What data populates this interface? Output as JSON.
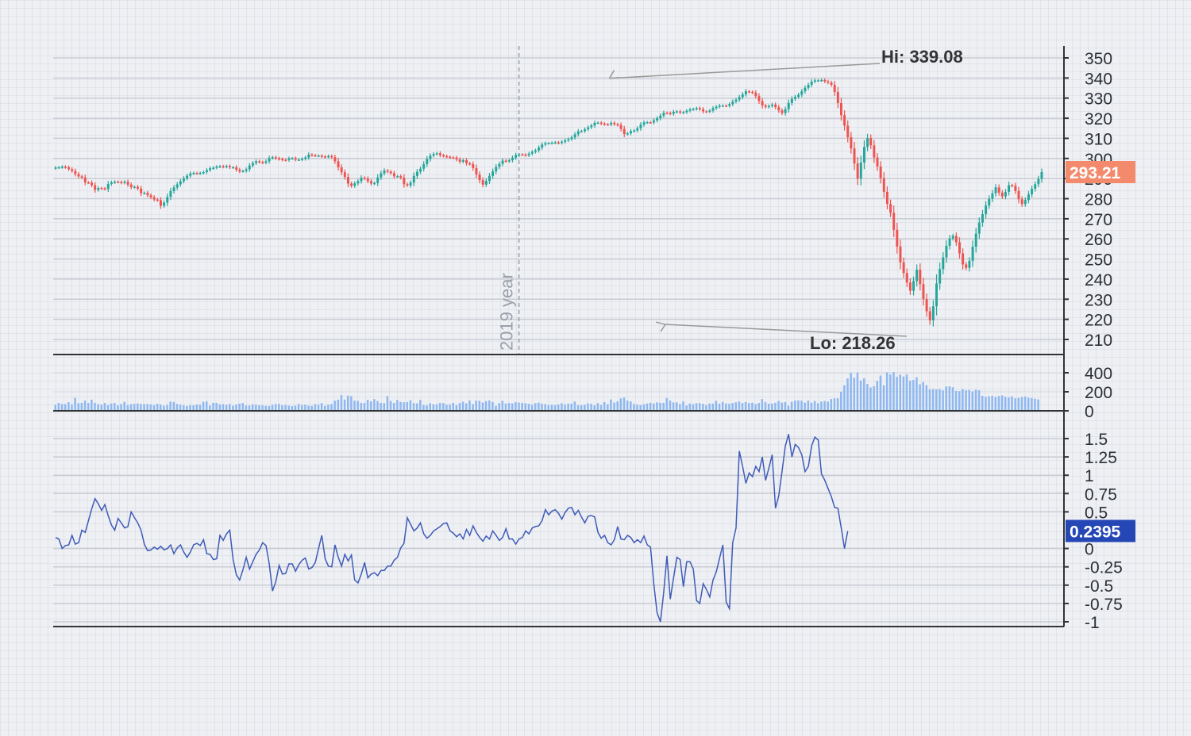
{
  "chart_data": {
    "type": "candlestick",
    "title": "",
    "vertical_marker": {
      "label": "2019 year",
      "index": 140
    },
    "colors": {
      "up": "#26a69a",
      "down": "#ef5350",
      "volume": "#8fb8f0",
      "indicator": "#3f5bb8",
      "last_price_badge": "#f48a6c",
      "indicator_badge": "#2547b5"
    },
    "price_panel": {
      "y_ticks": [
        350,
        340,
        330,
        320,
        310,
        300,
        290,
        280,
        270,
        260,
        250,
        240,
        230,
        220,
        210
      ],
      "y_range": [
        205,
        355
      ],
      "last_price": "293.21",
      "hi_label": "Hi: 339.08",
      "lo_label": "Lo: 218.26",
      "hi_value": 339.08,
      "lo_value": 218.26,
      "hi_index": 168,
      "lo_index": 186,
      "closes": [
        295.5,
        295.6,
        295.9,
        295.6,
        294.7,
        293.8,
        292.2,
        291.1,
        290.5,
        288.1,
        288.0,
        286.7,
        284.4,
        285.3,
        285.1,
        284.8,
        287.3,
        288.1,
        288.4,
        288.3,
        287.9,
        288.4,
        287.0,
        285.7,
        285.9,
        285.0,
        282.7,
        282.9,
        281.7,
        280.7,
        279.6,
        279.2,
        276.5,
        278.0,
        280.9,
        283.8,
        285.5,
        287.1,
        288.7,
        290.1,
        291.4,
        292.5,
        292.8,
        292.6,
        292.8,
        293.2,
        294.2,
        295.1,
        295.4,
        295.9,
        296.1,
        295.8,
        296.2,
        295.6,
        295.6,
        294.4,
        293.6,
        293.8,
        294.6,
        296.5,
        297.7,
        298.6,
        298.2,
        297.9,
        298.6,
        300.2,
        300.6,
        300.1,
        299.7,
        299.3,
        299.2,
        300.0,
        300.1,
        299.4,
        299.4,
        299.8,
        300.5,
        301.9,
        301.6,
        301.4,
        301.4,
        301.0,
        300.8,
        301.2,
        300.6,
        298.6,
        295.6,
        293.1,
        290.8,
        287.5,
        286.4,
        287.6,
        288.7,
        290.4,
        290.0,
        288.7,
        287.5,
        287.8,
        290.6,
        292.6,
        294.0,
        293.4,
        292.7,
        291.1,
        291.2,
        290.4,
        287.2,
        286.6,
        288.0,
        291.3,
        293.4,
        294.9,
        297.2,
        299.7,
        301.4,
        302.2,
        302.6,
        301.6,
        301.2,
        300.8,
        300.5,
        300.4,
        299.5,
        298.4,
        299.1,
        297.6,
        297.2,
        295.2,
        292.0,
        289.2,
        287.0,
        288.8,
        291.3,
        293.6,
        295.8,
        297.3,
        298.9,
        298.6,
        299.1,
        300.4,
        301.7,
        302.0,
        301.9,
        301.6,
        302.4,
        303.3,
        304.0,
        305.4,
        306.9,
        307.6,
        307.6,
        307.8,
        308.0,
        307.7,
        308.3,
        309.0,
        309.6,
        310.5,
        312.0,
        313.5,
        313.6,
        314.5,
        315.5,
        316.4,
        317.7,
        317.8,
        317.3,
        317.0,
        316.9,
        317.7,
        317.0,
        316.6,
        314.7,
        312.1,
        312.5,
        313.6,
        313.9,
        315.0,
        316.8,
        317.9,
        318.0,
        317.9,
        318.9,
        320.0,
        321.3,
        322.7,
        322.6,
        322.2,
        323.2,
        323.4,
        322.8,
        323.0,
        323.7,
        324.4,
        324.6,
        325.0,
        324.5,
        323.4,
        323.3,
        323.8,
        325.0,
        325.7,
        326.3,
        326.3,
        326.2,
        327.0,
        328.3,
        329.2,
        330.5,
        331.9,
        333.4,
        333.1,
        332.7,
        331.0,
        328.6,
        326.3,
        325.6,
        326.1,
        326.8,
        325.5,
        323.9,
        322.6,
        324.5,
        327.6,
        329.6,
        330.6,
        331.7,
        333.4,
        335.1,
        336.6,
        338.2,
        338.8,
        338.8,
        339.0,
        338.3,
        337.7,
        336.6,
        333.0,
        327.5,
        321.5,
        316.3,
        310.6,
        305.0,
        297.5,
        290.0,
        298.0,
        305.7,
        310.1,
        306.5,
        300.5,
        296.0,
        290.2,
        283.4,
        277.4,
        273.0,
        264.5,
        256.2,
        248.3,
        243.0,
        238.3,
        234.2,
        239.0,
        244.7,
        237.5,
        230.1,
        224.0,
        219.5,
        226.5,
        237.8,
        245.0,
        250.8,
        256.6,
        260.2,
        261.5,
        258.3,
        252.8,
        247.3,
        245.6,
        249.1,
        256.1,
        262.6,
        268.1,
        272.3,
        276.6,
        279.9,
        282.7,
        285.6,
        283.0,
        281.1,
        283.4,
        286.7,
        286.4,
        283.8,
        279.7,
        277.3,
        279.3,
        282.2,
        284.9,
        287.2,
        289.8,
        293.21
      ]
    },
    "volume_panel": {
      "y_ticks": [
        400,
        200,
        0
      ],
      "y_range": [
        0,
        440
      ],
      "values": [
        64,
        83,
        72,
        71,
        91,
        68,
        137,
        80,
        84,
        108,
        82,
        118,
        84,
        71,
        66,
        83,
        60,
        78,
        83,
        58,
        72,
        94,
        60,
        71,
        73,
        77,
        72,
        71,
        72,
        68,
        60,
        74,
        66,
        54,
        62,
        97,
        93,
        72,
        65,
        59,
        51,
        60,
        58,
        67,
        64,
        94,
        99,
        56,
        84,
        84,
        68,
        70,
        64,
        72,
        54,
        66,
        75,
        82,
        56,
        56,
        69,
        64,
        59,
        58,
        52,
        52,
        63,
        71,
        73,
        59,
        62,
        55,
        50,
        54,
        72,
        60,
        65,
        54,
        51,
        71,
        66,
        81,
        52,
        65,
        71,
        106,
        117,
        166,
        118,
        160,
        154,
        107,
        105,
        84,
        83,
        115,
        100,
        123,
        103,
        84,
        81,
        155,
        103,
        82,
        114,
        94,
        90,
        92,
        111,
        81,
        78,
        114,
        61,
        57,
        79,
        68,
        68,
        84,
        81,
        65,
        67,
        84,
        60,
        82,
        96,
        79,
        109,
        70,
        107,
        106,
        87,
        102,
        109,
        92,
        53,
        80,
        105,
        76,
        83,
        77,
        91,
        87,
        84,
        79,
        74,
        63,
        80,
        86,
        75,
        70,
        61,
        65,
        60,
        66,
        80,
        66,
        75,
        76,
        97,
        59,
        58,
        63,
        78,
        73,
        57,
        80,
        62,
        92,
        69,
        119,
        87,
        99,
        130,
        139,
        108,
        99,
        71,
        66,
        60,
        69,
        76,
        84,
        77,
        89,
        85,
        84,
        134,
        107,
        88,
        89,
        71,
        99,
        56,
        76,
        68,
        80,
        81,
        74,
        60,
        76,
        76,
        105,
        75,
        93,
        77,
        74,
        82,
        90,
        98,
        82,
        93,
        82,
        85,
        70,
        83,
        123,
        91,
        75,
        77,
        85,
        104,
        87,
        92,
        54,
        95,
        108,
        109,
        107,
        86,
        107,
        85,
        104,
        80,
        98,
        103,
        96,
        124,
        132,
        132,
        200,
        268,
        340,
        397,
        348,
        403,
        318,
        341,
        282,
        246,
        258,
        315,
        371,
        268,
        405,
        381,
        408,
        357,
        379,
        361,
        381,
        318,
        325,
        352,
        279,
        301,
        270,
        225,
        229,
        226,
        228,
        215,
        255,
        257,
        248,
        209,
        207,
        228,
        216,
        219,
        204,
        221,
        216,
        158,
        147,
        153,
        158,
        145,
        155,
        162,
        148,
        141,
        152,
        132,
        137,
        145,
        151,
        138,
        134,
        127,
        120
      ]
    },
    "indicator_panel": {
      "y_ticks": [
        "1.5",
        "1.25",
        "1",
        "0.75",
        "0.5",
        "0",
        "-0.25",
        "-0.5",
        "-0.75",
        "-1"
      ],
      "y_range": [
        -1.08,
        1.62
      ],
      "last_value": "0.2395",
      "values": [
        0.15,
        0.13,
        0.0,
        0.04,
        0.05,
        0.18,
        0.06,
        0.08,
        0.25,
        0.22,
        0.38,
        0.54,
        0.68,
        0.61,
        0.52,
        0.6,
        0.45,
        0.32,
        0.25,
        0.41,
        0.35,
        0.28,
        0.3,
        0.5,
        0.42,
        0.35,
        0.25,
        0.06,
        -0.03,
        -0.02,
        0.02,
        -0.01,
        0.03,
        -0.02,
        0.0,
        0.05,
        -0.07,
        0.01,
        0.05,
        -0.05,
        -0.12,
        -0.05,
        0.05,
        0.07,
        0.04,
        0.12,
        -0.07,
        -0.08,
        -0.15,
        -0.14,
        0.18,
        0.11,
        0.2,
        0.25,
        -0.15,
        -0.36,
        -0.43,
        -0.29,
        -0.12,
        -0.28,
        -0.18,
        -0.08,
        -0.02,
        0.08,
        0.04,
        -0.21,
        -0.58,
        -0.45,
        -0.23,
        -0.35,
        -0.34,
        -0.21,
        -0.21,
        -0.31,
        -0.22,
        -0.16,
        -0.13,
        -0.28,
        -0.26,
        -0.19,
        0.0,
        0.18,
        -0.14,
        -0.24,
        -0.25,
        0.05,
        -0.12,
        -0.24,
        -0.08,
        -0.17,
        -0.09,
        -0.43,
        -0.47,
        -0.35,
        -0.19,
        -0.4,
        -0.35,
        -0.33,
        -0.37,
        -0.3,
        -0.3,
        -0.24,
        -0.24,
        -0.16,
        -0.12,
        0.01,
        0.07,
        0.42,
        0.33,
        0.24,
        0.28,
        0.35,
        0.2,
        0.14,
        0.18,
        0.24,
        0.27,
        0.3,
        0.34,
        0.35,
        0.24,
        0.21,
        0.16,
        0.2,
        0.13,
        0.26,
        0.18,
        0.31,
        0.22,
        0.15,
        0.1,
        0.17,
        0.13,
        0.24,
        0.18,
        0.11,
        0.15,
        0.27,
        0.13,
        0.13,
        0.06,
        0.13,
        0.15,
        0.24,
        0.2,
        0.28,
        0.3,
        0.31,
        0.38,
        0.53,
        0.46,
        0.51,
        0.53,
        0.48,
        0.4,
        0.49,
        0.55,
        0.56,
        0.46,
        0.52,
        0.43,
        0.35,
        0.44,
        0.45,
        0.43,
        0.22,
        0.14,
        0.18,
        0.08,
        0.05,
        0.12,
        0.3,
        0.13,
        0.12,
        0.18,
        0.15,
        0.08,
        0.12,
        0.08,
        0.17,
        0.05,
        0.02,
        -0.49,
        -0.88,
        -1.0,
        -0.6,
        -0.1,
        -0.69,
        -0.4,
        -0.12,
        -0.15,
        -0.52,
        -0.18,
        -0.18,
        -0.28,
        -0.71,
        -0.75,
        -0.48,
        -0.56,
        -0.66,
        -0.43,
        -0.32,
        -0.13,
        0.05,
        -0.73,
        -0.82,
        0.08,
        0.28,
        1.33,
        1.12,
        0.89,
        1.03,
        0.98,
        1.12,
        1.05,
        1.25,
        0.93,
        1.1,
        1.28,
        0.55,
        0.72,
        1.05,
        1.4,
        1.56,
        1.25,
        1.42,
        1.38,
        1.28,
        1.05,
        1.12,
        1.4,
        1.52,
        1.48,
        1.02,
        0.93,
        0.82,
        0.71,
        0.56,
        0.55,
        0.28,
        0.0,
        0.2395
      ]
    }
  }
}
